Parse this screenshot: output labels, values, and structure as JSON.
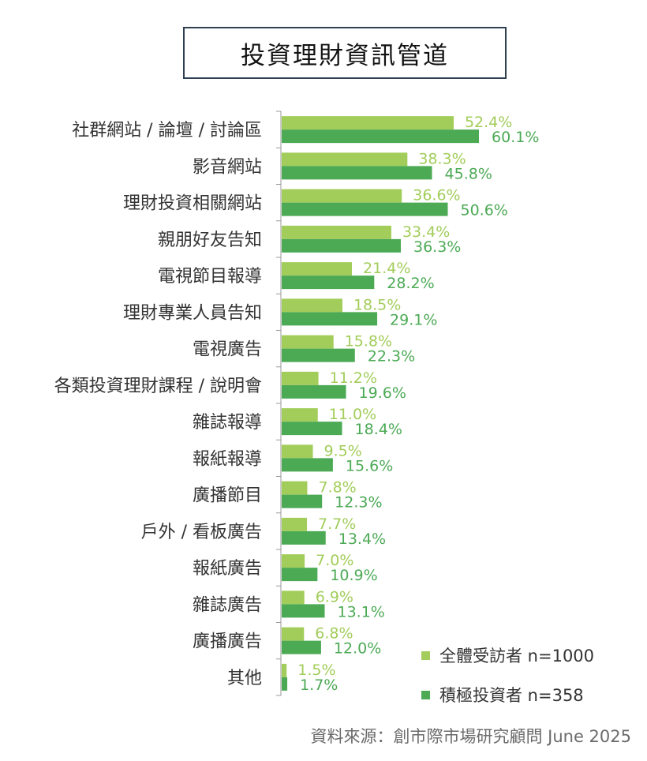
{
  "colors": {
    "series_all": "#a2cd5a",
    "series_active": "#4caa55",
    "axis": "#999999",
    "title_border": "#2e3f4f"
  },
  "chart_data": {
    "type": "bar",
    "orientation": "horizontal",
    "title": "投資理財資訊管道",
    "xlim": [
      0,
      75
    ],
    "grid": false,
    "legend_position": "bottom-right",
    "categories": [
      "社群網站 / 論壇 / 討論區",
      "影音網站",
      "理財投資相關網站",
      "親朋好友告知",
      "電視節目報導",
      "理財專業人員告知",
      "電視廣告",
      "各類投資理財課程 / 說明會",
      "雜誌報導",
      "報紙報導",
      "廣播節目",
      "戶外 / 看板廣告",
      "報紙廣告",
      "雜誌廣告",
      "廣播廣告",
      "其他"
    ],
    "series": [
      {
        "name": "全體受訪者 n=1000",
        "values": [
          52.4,
          38.3,
          36.6,
          33.4,
          21.4,
          18.5,
          15.8,
          11.2,
          11.0,
          9.5,
          7.8,
          7.7,
          7.0,
          6.9,
          6.8,
          1.5
        ]
      },
      {
        "name": "積極投資者 n=358",
        "values": [
          60.1,
          45.8,
          50.6,
          36.3,
          28.2,
          29.1,
          22.3,
          19.6,
          18.4,
          15.6,
          12.3,
          13.4,
          10.9,
          13.1,
          12.0,
          1.7
        ]
      }
    ],
    "value_suffix": "%"
  },
  "legend": {
    "items": [
      {
        "label": "全體受訪者 n=1000"
      },
      {
        "label": "積極投資者 n=358"
      }
    ]
  },
  "source": "資料來源：創市際市場研究顧問 June 2025"
}
